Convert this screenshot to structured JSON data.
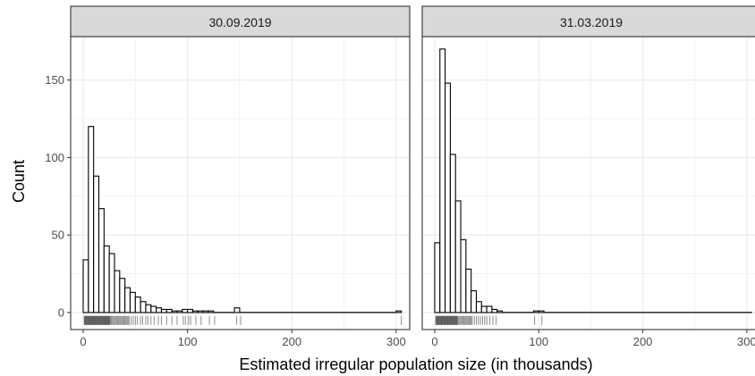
{
  "chart_data": {
    "type": "histogram",
    "xlabel": "Estimated irregular population size (in thousands)",
    "ylabel": "Count",
    "xlim": [
      -12,
      313
    ],
    "ylim": [
      -11,
      178
    ],
    "x_ticks": [
      0,
      100,
      200,
      300
    ],
    "y_ticks": [
      0,
      50,
      100,
      150
    ],
    "x_minor": [
      50,
      150,
      250
    ],
    "y_minor": [
      25,
      75,
      125
    ],
    "bin_width": 5,
    "grid": true,
    "colors": {
      "bar_fill": "#ffffff",
      "bar_outline": "#000000",
      "strip_fill": "#d9d9d9",
      "panel_border": "#333333",
      "grid": "#ebebeb"
    },
    "panels": [
      {
        "label": "30.09.2019",
        "bins": [
          {
            "x0": 0,
            "x1": 5,
            "count": 34
          },
          {
            "x0": 5,
            "x1": 10,
            "count": 120
          },
          {
            "x0": 10,
            "x1": 15,
            "count": 88
          },
          {
            "x0": 15,
            "x1": 20,
            "count": 67
          },
          {
            "x0": 20,
            "x1": 25,
            "count": 43
          },
          {
            "x0": 25,
            "x1": 30,
            "count": 38
          },
          {
            "x0": 30,
            "x1": 35,
            "count": 27
          },
          {
            "x0": 35,
            "x1": 40,
            "count": 22
          },
          {
            "x0": 40,
            "x1": 45,
            "count": 16
          },
          {
            "x0": 45,
            "x1": 50,
            "count": 13
          },
          {
            "x0": 50,
            "x1": 55,
            "count": 10
          },
          {
            "x0": 55,
            "x1": 60,
            "count": 7
          },
          {
            "x0": 60,
            "x1": 65,
            "count": 5
          },
          {
            "x0": 65,
            "x1": 70,
            "count": 4
          },
          {
            "x0": 70,
            "x1": 75,
            "count": 3
          },
          {
            "x0": 75,
            "x1": 80,
            "count": 2
          },
          {
            "x0": 80,
            "x1": 85,
            "count": 2
          },
          {
            "x0": 85,
            "x1": 90,
            "count": 1
          },
          {
            "x0": 90,
            "x1": 95,
            "count": 1
          },
          {
            "x0": 95,
            "x1": 100,
            "count": 2
          },
          {
            "x0": 100,
            "x1": 105,
            "count": 2
          },
          {
            "x0": 105,
            "x1": 110,
            "count": 1
          },
          {
            "x0": 110,
            "x1": 115,
            "count": 1
          },
          {
            "x0": 115,
            "x1": 120,
            "count": 1
          },
          {
            "x0": 120,
            "x1": 125,
            "count": 1
          },
          {
            "x0": 125,
            "x1": 130,
            "count": 0
          },
          {
            "x0": 130,
            "x1": 135,
            "count": 0
          },
          {
            "x0": 135,
            "x1": 140,
            "count": 0
          },
          {
            "x0": 140,
            "x1": 145,
            "count": 0
          },
          {
            "x0": 145,
            "x1": 150,
            "count": 3
          },
          {
            "x0": 300,
            "x1": 305,
            "count": 1
          }
        ],
        "rug": [
          1,
          1.5,
          2,
          2.5,
          3,
          3.5,
          4,
          4.5,
          5,
          5.5,
          6,
          6.5,
          7,
          7.5,
          8,
          8.5,
          9,
          9.5,
          10,
          10.5,
          11,
          11.5,
          12,
          12.5,
          13,
          13.5,
          14,
          14.5,
          15,
          15.5,
          16,
          16.5,
          17,
          17.5,
          18,
          18.5,
          19,
          19.5,
          20,
          20.5,
          21,
          21.5,
          22,
          22.5,
          23,
          23.5,
          24,
          24.5,
          25,
          25.5,
          26,
          27,
          28,
          29,
          30,
          31,
          32,
          33,
          34,
          35,
          36,
          37,
          38,
          39,
          40,
          41,
          42,
          43,
          44,
          46,
          48,
          50,
          52,
          55,
          57,
          60,
          62,
          65,
          68,
          72,
          75,
          80,
          85,
          90,
          96,
          98,
          101,
          103,
          108,
          113,
          121,
          126,
          147,
          151,
          305
        ]
      },
      {
        "label": "31.03.2019",
        "bins": [
          {
            "x0": 0,
            "x1": 5,
            "count": 45
          },
          {
            "x0": 5,
            "x1": 10,
            "count": 170
          },
          {
            "x0": 10,
            "x1": 15,
            "count": 148
          },
          {
            "x0": 15,
            "x1": 20,
            "count": 102
          },
          {
            "x0": 20,
            "x1": 25,
            "count": 72
          },
          {
            "x0": 25,
            "x1": 30,
            "count": 47
          },
          {
            "x0": 30,
            "x1": 35,
            "count": 28
          },
          {
            "x0": 35,
            "x1": 40,
            "count": 14
          },
          {
            "x0": 40,
            "x1": 45,
            "count": 7
          },
          {
            "x0": 45,
            "x1": 50,
            "count": 4
          },
          {
            "x0": 50,
            "x1": 55,
            "count": 4
          },
          {
            "x0": 55,
            "x1": 60,
            "count": 2
          },
          {
            "x0": 60,
            "x1": 65,
            "count": 1
          },
          {
            "x0": 65,
            "x1": 70,
            "count": 0
          },
          {
            "x0": 70,
            "x1": 75,
            "count": 0
          },
          {
            "x0": 75,
            "x1": 80,
            "count": 0
          },
          {
            "x0": 80,
            "x1": 85,
            "count": 0
          },
          {
            "x0": 85,
            "x1": 90,
            "count": 0
          },
          {
            "x0": 90,
            "x1": 95,
            "count": 0
          },
          {
            "x0": 95,
            "x1": 100,
            "count": 1
          },
          {
            "x0": 100,
            "x1": 105,
            "count": 1
          }
        ],
        "rug": [
          1,
          1.5,
          2,
          2.5,
          3,
          3.5,
          4,
          4.5,
          5,
          5.5,
          6,
          6.5,
          7,
          7.5,
          8,
          8.5,
          9,
          9.5,
          10,
          10.5,
          11,
          11.5,
          12,
          12.5,
          13,
          13.5,
          14,
          14.5,
          15,
          15.5,
          16,
          16.5,
          17,
          17.5,
          18,
          18.5,
          19,
          19.5,
          20,
          20.5,
          21,
          21.5,
          22,
          23,
          24,
          25,
          26,
          27,
          28,
          29,
          30,
          31,
          32,
          33,
          34,
          35,
          36,
          38,
          40,
          42,
          44,
          46,
          48,
          50,
          53,
          56,
          59,
          96,
          103
        ]
      }
    ]
  }
}
